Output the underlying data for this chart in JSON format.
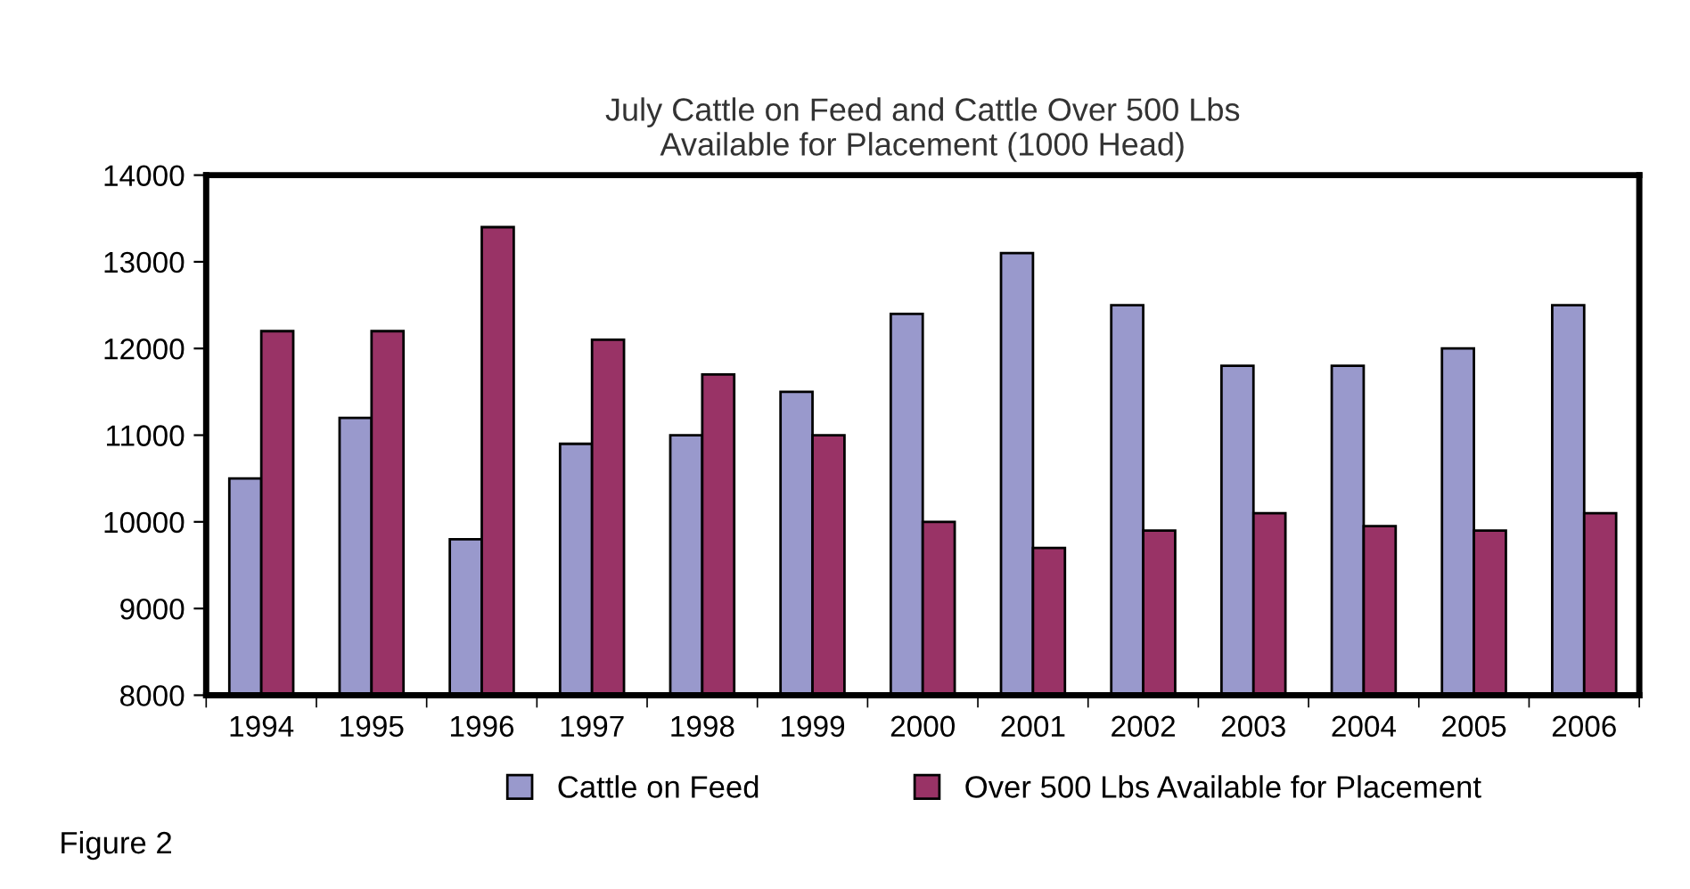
{
  "chart_data": {
    "type": "bar",
    "title": "July Cattle on Feed and Cattle Over 500 Lbs\nAvailable for Placement (1000 Head)",
    "categories": [
      "1994",
      "1995",
      "1996",
      "1997",
      "1998",
      "1999",
      "2000",
      "2001",
      "2002",
      "2003",
      "2004",
      "2005",
      "2006"
    ],
    "series": [
      {
        "name": "Cattle on Feed",
        "color": "#9999cc",
        "values": [
          10500,
          11200,
          9800,
          10900,
          11000,
          11500,
          12400,
          13100,
          12500,
          11800,
          11800,
          12000,
          12500
        ]
      },
      {
        "name": "Over 500 Lbs Available for Placement",
        "color": "#993366",
        "values": [
          12200,
          12200,
          13400,
          12100,
          11700,
          11000,
          10000,
          9700,
          9900,
          10100,
          9950,
          9900,
          10100
        ]
      }
    ],
    "ylim": [
      8000,
      14000
    ],
    "yticks": [
      8000,
      9000,
      10000,
      11000,
      12000,
      13000,
      14000
    ],
    "grid": false,
    "legend": "bottom",
    "annotations": [
      "Figure 2"
    ]
  }
}
